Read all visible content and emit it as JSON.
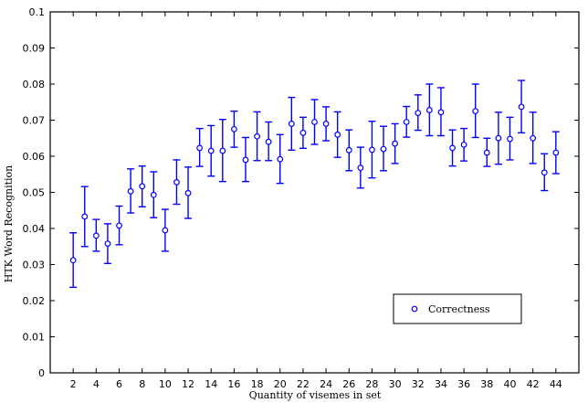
{
  "chart_data": {
    "type": "scatter",
    "xlabel": "Quantity of visemes in set",
    "ylabel": "HTK Word Recognition",
    "xlim": [
      0,
      46
    ],
    "ylim": [
      0,
      0.1
    ],
    "xticks": [
      2,
      4,
      6,
      8,
      10,
      12,
      14,
      16,
      18,
      20,
      22,
      24,
      26,
      28,
      30,
      32,
      34,
      36,
      38,
      40,
      42,
      44
    ],
    "xtick_labels": [
      "2",
      "4",
      "6",
      "8",
      "10",
      "12",
      "14",
      "16",
      "18",
      "20",
      "22",
      "24",
      "26",
      "28",
      "30",
      "32",
      "34",
      "36",
      "38",
      "40",
      "42",
      "44"
    ],
    "yticks": [
      0,
      0.01,
      0.02,
      0.03,
      0.04,
      0.05,
      0.06,
      0.07,
      0.08,
      0.09,
      0.1
    ],
    "ytick_labels": [
      "0",
      "0.01",
      "0.02",
      "0.03",
      "0.04",
      "0.05",
      "0.06",
      "0.07",
      "0.08",
      "0.09",
      "0.1"
    ],
    "grid": false,
    "legend_position": "lower-right",
    "color": "#0000ff",
    "series": [
      {
        "name": "Correctness",
        "marker": "circle",
        "points": [
          {
            "x": 2,
            "y": 0.0312,
            "low": 0.0237,
            "high": 0.0388
          },
          {
            "x": 3,
            "y": 0.0433,
            "low": 0.035,
            "high": 0.0516
          },
          {
            "x": 4,
            "y": 0.038,
            "low": 0.0337,
            "high": 0.0425
          },
          {
            "x": 5,
            "y": 0.0358,
            "low": 0.0303,
            "high": 0.0413
          },
          {
            "x": 6,
            "y": 0.0408,
            "low": 0.0355,
            "high": 0.0462
          },
          {
            "x": 7,
            "y": 0.0503,
            "low": 0.0443,
            "high": 0.0565
          },
          {
            "x": 8,
            "y": 0.0517,
            "low": 0.046,
            "high": 0.0573
          },
          {
            "x": 9,
            "y": 0.0493,
            "low": 0.043,
            "high": 0.0557
          },
          {
            "x": 10,
            "y": 0.0395,
            "low": 0.0337,
            "high": 0.0453
          },
          {
            "x": 11,
            "y": 0.0528,
            "low": 0.0467,
            "high": 0.059
          },
          {
            "x": 12,
            "y": 0.0498,
            "low": 0.0428,
            "high": 0.057
          },
          {
            "x": 13,
            "y": 0.0623,
            "low": 0.0572,
            "high": 0.0677
          },
          {
            "x": 14,
            "y": 0.0615,
            "low": 0.0545,
            "high": 0.0685
          },
          {
            "x": 15,
            "y": 0.0615,
            "low": 0.053,
            "high": 0.0702
          },
          {
            "x": 16,
            "y": 0.0675,
            "low": 0.0625,
            "high": 0.0725
          },
          {
            "x": 17,
            "y": 0.059,
            "low": 0.053,
            "high": 0.0652
          },
          {
            "x": 18,
            "y": 0.0655,
            "low": 0.0588,
            "high": 0.0723
          },
          {
            "x": 19,
            "y": 0.064,
            "low": 0.0588,
            "high": 0.0695
          },
          {
            "x": 20,
            "y": 0.0592,
            "low": 0.0525,
            "high": 0.066
          },
          {
            "x": 21,
            "y": 0.069,
            "low": 0.0617,
            "high": 0.0763
          },
          {
            "x": 22,
            "y": 0.0665,
            "low": 0.0622,
            "high": 0.0708
          },
          {
            "x": 23,
            "y": 0.0695,
            "low": 0.0633,
            "high": 0.0757
          },
          {
            "x": 24,
            "y": 0.069,
            "low": 0.0643,
            "high": 0.0737
          },
          {
            "x": 25,
            "y": 0.066,
            "low": 0.0597,
            "high": 0.0723
          },
          {
            "x": 26,
            "y": 0.0617,
            "low": 0.056,
            "high": 0.0673
          },
          {
            "x": 27,
            "y": 0.0568,
            "low": 0.0512,
            "high": 0.0625
          },
          {
            "x": 28,
            "y": 0.0618,
            "low": 0.054,
            "high": 0.0697
          },
          {
            "x": 29,
            "y": 0.062,
            "low": 0.056,
            "high": 0.0683
          },
          {
            "x": 30,
            "y": 0.0635,
            "low": 0.058,
            "high": 0.069
          },
          {
            "x": 31,
            "y": 0.0695,
            "low": 0.0653,
            "high": 0.0738
          },
          {
            "x": 32,
            "y": 0.072,
            "low": 0.0672,
            "high": 0.077
          },
          {
            "x": 33,
            "y": 0.0728,
            "low": 0.0657,
            "high": 0.08
          },
          {
            "x": 34,
            "y": 0.0722,
            "low": 0.0657,
            "high": 0.079
          },
          {
            "x": 35,
            "y": 0.0623,
            "low": 0.0573,
            "high": 0.0673
          },
          {
            "x": 36,
            "y": 0.0632,
            "low": 0.0587,
            "high": 0.0677
          },
          {
            "x": 37,
            "y": 0.0725,
            "low": 0.0652,
            "high": 0.08
          },
          {
            "x": 38,
            "y": 0.061,
            "low": 0.0572,
            "high": 0.065
          },
          {
            "x": 39,
            "y": 0.065,
            "low": 0.0578,
            "high": 0.0722
          },
          {
            "x": 40,
            "y": 0.0648,
            "low": 0.059,
            "high": 0.0708
          },
          {
            "x": 41,
            "y": 0.0737,
            "low": 0.0665,
            "high": 0.081
          },
          {
            "x": 42,
            "y": 0.065,
            "low": 0.058,
            "high": 0.0722
          },
          {
            "x": 43,
            "y": 0.0555,
            "low": 0.0505,
            "high": 0.0607
          },
          {
            "x": 44,
            "y": 0.061,
            "low": 0.0552,
            "high": 0.0668
          }
        ]
      }
    ]
  }
}
